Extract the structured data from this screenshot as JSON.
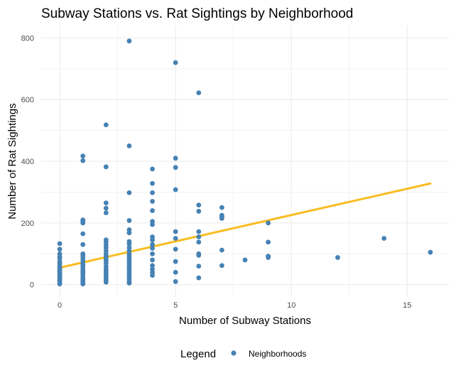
{
  "chart_data": {
    "type": "scatter",
    "title": "Subway Stations vs. Rat Sightings by Neighborhood",
    "xlabel": "Number of Subway Stations",
    "ylabel": "Number of Rat Sightings",
    "xlim": [
      -0.8,
      16.8
    ],
    "ylim": [
      -40,
      840
    ],
    "x_ticks": [
      0,
      5,
      10,
      15
    ],
    "y_ticks": [
      0,
      200,
      400,
      600,
      800
    ],
    "grid": true,
    "legend": {
      "title": "Legend",
      "position": "bottom",
      "entries": [
        "Neighborhoods"
      ]
    },
    "colors": {
      "points": "#4682b4",
      "trend": "#f9bd21",
      "grid": "#ebebeb"
    },
    "series": [
      {
        "name": "Neighborhoods",
        "points": [
          [
            0,
            133
          ],
          [
            0,
            115
          ],
          [
            0,
            100
          ],
          [
            0,
            90
          ],
          [
            0,
            85
          ],
          [
            0,
            75
          ],
          [
            0,
            68
          ],
          [
            0,
            60
          ],
          [
            0,
            55
          ],
          [
            0,
            50
          ],
          [
            0,
            45
          ],
          [
            0,
            40
          ],
          [
            0,
            35
          ],
          [
            0,
            30
          ],
          [
            0,
            25
          ],
          [
            0,
            20
          ],
          [
            0,
            15
          ],
          [
            0,
            10
          ],
          [
            0,
            5
          ],
          [
            0,
            2
          ],
          [
            1,
            417
          ],
          [
            1,
            402
          ],
          [
            1,
            210
          ],
          [
            1,
            205
          ],
          [
            1,
            200
          ],
          [
            1,
            165
          ],
          [
            1,
            130
          ],
          [
            1,
            100
          ],
          [
            1,
            95
          ],
          [
            1,
            88
          ],
          [
            1,
            80
          ],
          [
            1,
            72
          ],
          [
            1,
            65
          ],
          [
            1,
            58
          ],
          [
            1,
            50
          ],
          [
            1,
            45
          ],
          [
            1,
            40
          ],
          [
            1,
            35
          ],
          [
            1,
            28
          ],
          [
            1,
            20
          ],
          [
            1,
            15
          ],
          [
            1,
            8
          ],
          [
            1,
            2
          ],
          [
            2,
            518
          ],
          [
            2,
            382
          ],
          [
            2,
            265
          ],
          [
            2,
            248
          ],
          [
            2,
            233
          ],
          [
            2,
            145
          ],
          [
            2,
            138
          ],
          [
            2,
            128
          ],
          [
            2,
            120
          ],
          [
            2,
            110
          ],
          [
            2,
            100
          ],
          [
            2,
            92
          ],
          [
            2,
            85
          ],
          [
            2,
            78
          ],
          [
            2,
            70
          ],
          [
            2,
            60
          ],
          [
            2,
            52
          ],
          [
            2,
            45
          ],
          [
            2,
            38
          ],
          [
            2,
            30
          ],
          [
            2,
            22
          ],
          [
            2,
            15
          ],
          [
            2,
            8
          ],
          [
            3,
            790
          ],
          [
            3,
            450
          ],
          [
            3,
            298
          ],
          [
            3,
            208
          ],
          [
            3,
            178
          ],
          [
            3,
            168
          ],
          [
            3,
            140
          ],
          [
            3,
            132
          ],
          [
            3,
            120
          ],
          [
            3,
            110
          ],
          [
            3,
            100
          ],
          [
            3,
            92
          ],
          [
            3,
            85
          ],
          [
            3,
            78
          ],
          [
            3,
            70
          ],
          [
            3,
            62
          ],
          [
            3,
            55
          ],
          [
            3,
            48
          ],
          [
            3,
            40
          ],
          [
            3,
            32
          ],
          [
            3,
            25
          ],
          [
            3,
            18
          ],
          [
            3,
            10
          ],
          [
            3,
            5
          ],
          [
            4,
            375
          ],
          [
            4,
            328
          ],
          [
            4,
            298
          ],
          [
            4,
            270
          ],
          [
            4,
            240
          ],
          [
            4,
            205
          ],
          [
            4,
            195
          ],
          [
            4,
            155
          ],
          [
            4,
            145
          ],
          [
            4,
            130
          ],
          [
            4,
            118
          ],
          [
            4,
            100
          ],
          [
            4,
            80
          ],
          [
            4,
            62
          ],
          [
            4,
            50
          ],
          [
            4,
            40
          ],
          [
            4,
            30
          ],
          [
            5,
            720
          ],
          [
            5,
            410
          ],
          [
            5,
            380
          ],
          [
            5,
            308
          ],
          [
            5,
            172
          ],
          [
            5,
            150
          ],
          [
            5,
            115
          ],
          [
            5,
            75
          ],
          [
            5,
            40
          ],
          [
            5,
            10
          ],
          [
            6,
            622
          ],
          [
            6,
            258
          ],
          [
            6,
            238
          ],
          [
            6,
            172
          ],
          [
            6,
            155
          ],
          [
            6,
            138
          ],
          [
            6,
            100
          ],
          [
            6,
            95
          ],
          [
            6,
            60
          ],
          [
            6,
            22
          ],
          [
            7,
            250
          ],
          [
            7,
            225
          ],
          [
            7,
            220
          ],
          [
            7,
            215
          ],
          [
            7,
            112
          ],
          [
            7,
            62
          ],
          [
            8,
            80
          ],
          [
            9,
            200
          ],
          [
            9,
            138
          ],
          [
            9,
            92
          ],
          [
            9,
            88
          ],
          [
            12,
            88
          ],
          [
            14,
            150
          ],
          [
            16,
            105
          ]
        ]
      }
    ],
    "trend_line": {
      "x": [
        0,
        16
      ],
      "y": [
        55,
        328
      ]
    }
  }
}
